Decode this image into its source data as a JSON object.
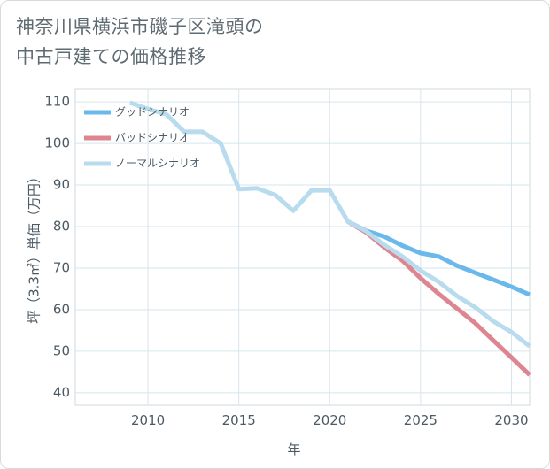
{
  "chart_data": {
    "type": "line",
    "title_lines": [
      "神奈川県横浜市磯子区滝頭の",
      "中古戸建ての価格推移"
    ],
    "xlabel": "年",
    "ylabel": "坪（3.3㎡）単価（万円）",
    "xlim": [
      2006,
      2031
    ],
    "ylim": [
      37,
      113
    ],
    "x_ticks": [
      2010,
      2015,
      2020,
      2025,
      2030
    ],
    "y_ticks": [
      40,
      50,
      60,
      70,
      80,
      90,
      100,
      110
    ],
    "grid": true,
    "legend_position": "top-left",
    "series": [
      {
        "name": "グッドシナリオ",
        "color": "#6bb8ea",
        "x": [
          2021,
          2022,
          2023,
          2024,
          2025,
          2026,
          2027,
          2028,
          2029,
          2030,
          2031
        ],
        "values": [
          81.2,
          79.0,
          77.6,
          75.4,
          73.6,
          72.8,
          70.6,
          68.9,
          67.2,
          65.5,
          63.6
        ]
      },
      {
        "name": "バッドシナリオ",
        "color": "#dd8590",
        "x": [
          2021,
          2022,
          2023,
          2024,
          2025,
          2026,
          2027,
          2028,
          2029,
          2030,
          2031
        ],
        "values": [
          81.2,
          78.6,
          75.0,
          71.8,
          67.6,
          63.8,
          60.3,
          56.8,
          52.6,
          48.5,
          44.3
        ]
      },
      {
        "name": "ノーマルシナリオ",
        "color": "#b8dced",
        "x": [
          2009,
          2010,
          2011,
          2012,
          2013,
          2014,
          2015,
          2016,
          2017,
          2018,
          2019,
          2020,
          2021,
          2022,
          2023,
          2024,
          2025,
          2026,
          2027,
          2028,
          2029,
          2030,
          2031
        ],
        "values": [
          109.8,
          108.3,
          107.0,
          102.8,
          102.8,
          100.0,
          89.0,
          89.2,
          87.6,
          83.8,
          88.7,
          88.7,
          81.2,
          78.9,
          75.6,
          72.8,
          69.4,
          66.7,
          63.3,
          60.6,
          57.2,
          54.6,
          51.2
        ]
      }
    ]
  }
}
